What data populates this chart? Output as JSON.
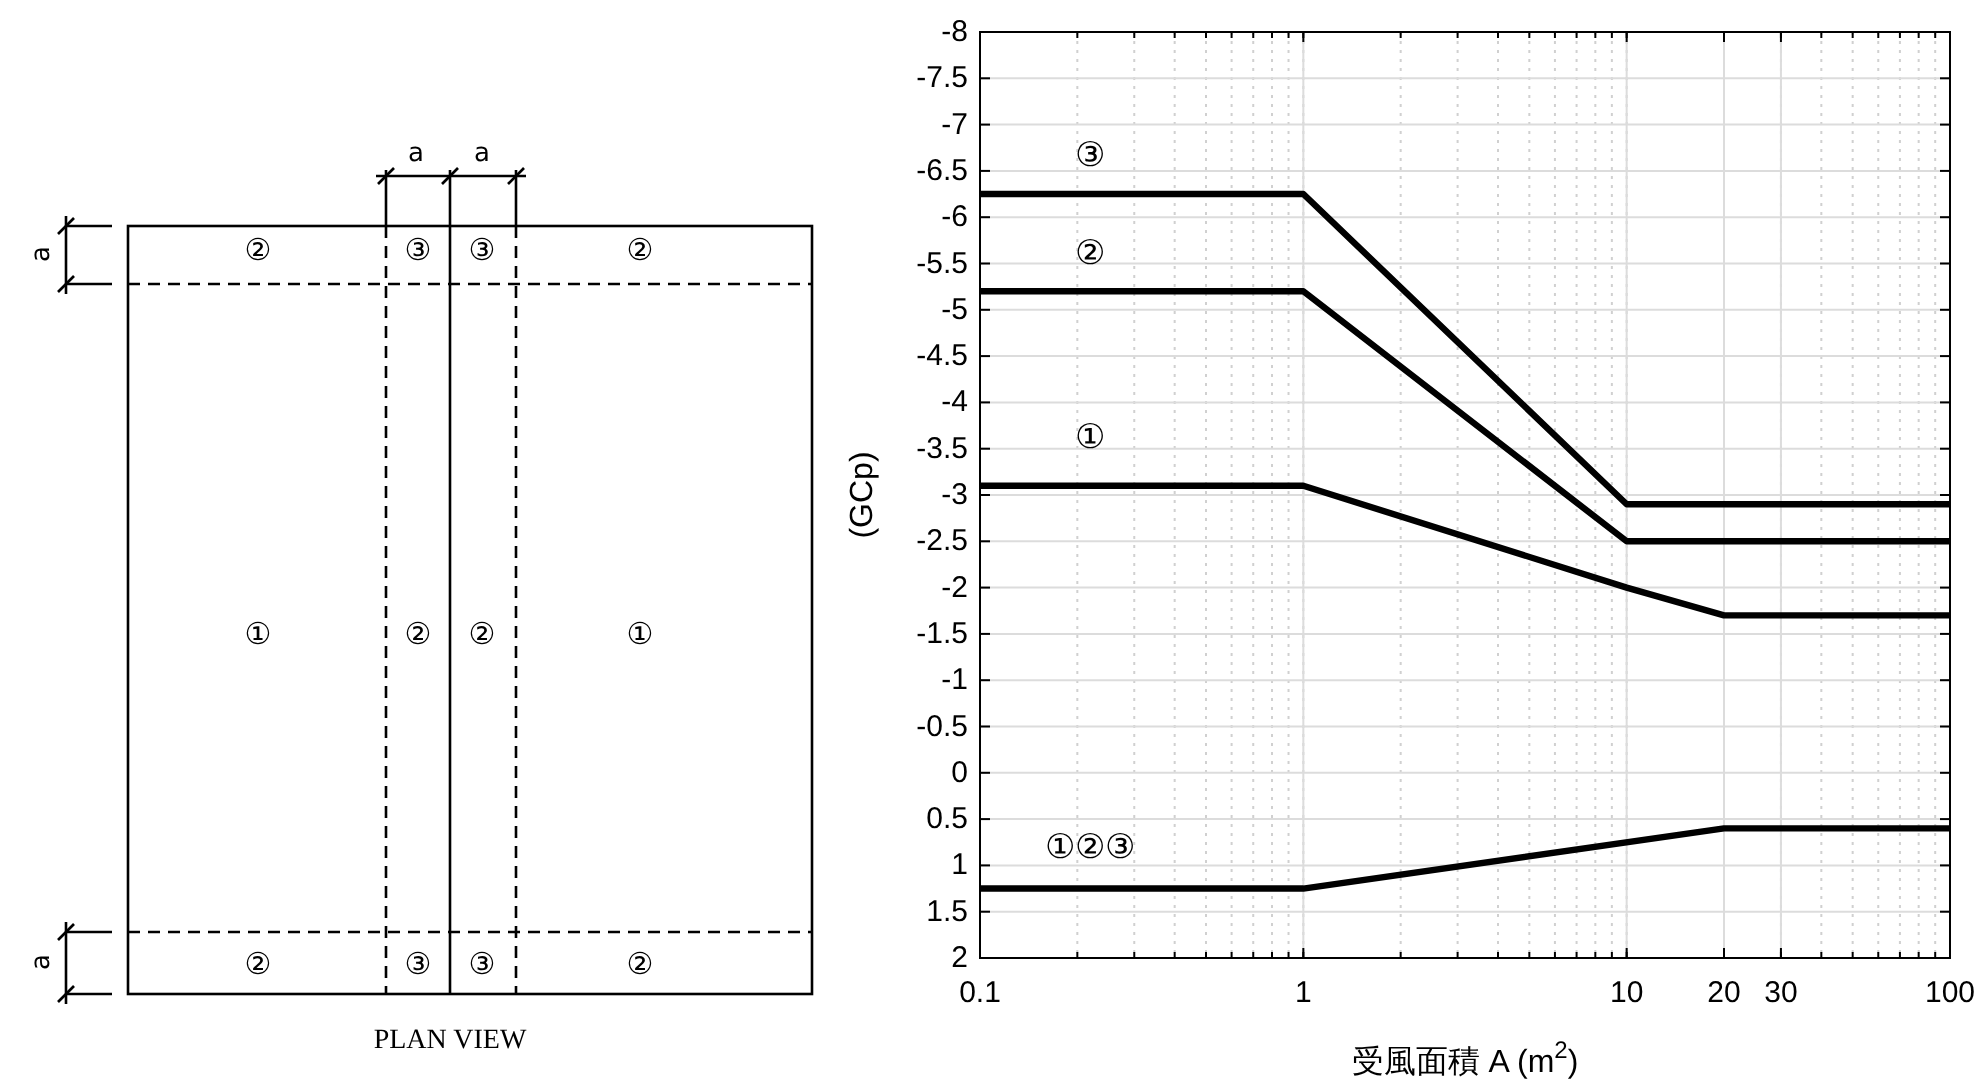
{
  "chart_data": [
    {
      "type": "other",
      "title": "PLAN VIEW",
      "annotations": [
        "②",
        "③",
        "③",
        "②",
        "①",
        "②",
        "②",
        "①",
        "②",
        "③",
        "③",
        "②",
        "a",
        "a",
        "a",
        "a"
      ]
    },
    {
      "type": "line",
      "xlabel": "受風面積 A (m$^{2}$)",
      "ylabel": "(GCp)",
      "log": "x",
      "grid": true,
      "marker": "none",
      "line_style": "solid",
      "xlim": [
        0.1,
        100
      ],
      "xticks": [
        0.1,
        1,
        10,
        20,
        30,
        100
      ],
      "ylim": [
        2,
        -8
      ],
      "yticks": [
        2,
        1.5,
        1,
        0.5,
        0,
        -0.5,
        -1,
        -1.5,
        -2,
        -2.5,
        -3,
        -3.5,
        -4,
        -4.5,
        -5,
        -5.5,
        -6,
        -6.5,
        -7,
        -7.5,
        -8
      ],
      "series": [
        {
          "color": "#000000",
          "x": [
            0.1,
            1,
            10,
            100
          ],
          "values": [
            -6.25,
            -6.25,
            -2.9,
            -2.9
          ]
        },
        {
          "color": "#000000",
          "x": [
            0.1,
            1,
            10,
            100
          ],
          "values": [
            -5.2,
            -5.2,
            -2.5,
            -2.5
          ]
        },
        {
          "color": "#000000",
          "x": [
            0.1,
            1,
            10,
            20,
            100
          ],
          "values": [
            -3.1,
            -3.1,
            -2,
            -1.7,
            -1.7
          ]
        },
        {
          "color": "#000000",
          "x": [
            0.1,
            1,
            20,
            100
          ],
          "values": [
            1.25,
            1.25,
            0.6,
            0.6
          ]
        }
      ],
      "annotations": [
        "③",
        "②",
        "①",
        "①②③"
      ]
    }
  ]
}
